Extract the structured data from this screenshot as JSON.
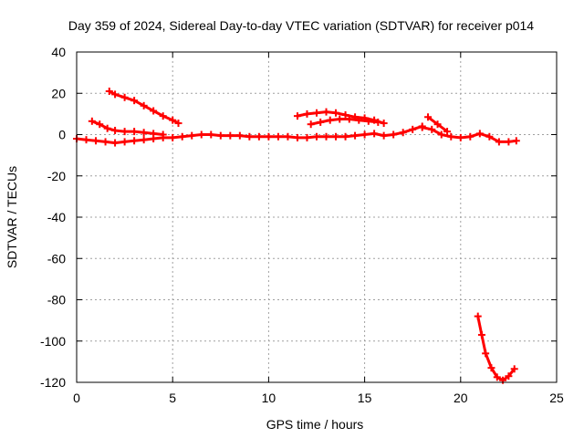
{
  "chart_data": {
    "type": "scatter",
    "title": "Day 359 of 2024, Sidereal Day-to-day VTEC variation (SDTVAR) for receiver p014",
    "xlabel": "GPS time / hours",
    "ylabel": "SDTVAR / TECUs",
    "xlim": [
      0,
      25
    ],
    "ylim": [
      -120,
      40
    ],
    "xticks": [
      0,
      5,
      10,
      15,
      20,
      25
    ],
    "yticks": [
      -120,
      -100,
      -80,
      -60,
      -40,
      -20,
      0,
      20,
      40
    ],
    "xtick_labels": [
      "0",
      "5",
      "10",
      "15",
      "20",
      "25"
    ],
    "ytick_labels": [
      "-120",
      "-100",
      "-80",
      "-60",
      "-40",
      "-20",
      "0",
      "20",
      "40"
    ],
    "grid": true,
    "marker_color": "#ff0000",
    "series": [
      {
        "name": "arc-1",
        "x": [
          0,
          0.5,
          1,
          1.5,
          2,
          2.5,
          3,
          3.5,
          4,
          4.5,
          5,
          5.5,
          6,
          6.5,
          7,
          7.5,
          8,
          8.5,
          9,
          9.5,
          10,
          10.5,
          11,
          11.5,
          12,
          12.5,
          13,
          13.5,
          14,
          14.5,
          15,
          15.5,
          16,
          16.5,
          17,
          17.5,
          18
        ],
        "y": [
          -2,
          -2.5,
          -3,
          -3.5,
          -4,
          -3.5,
          -3,
          -2.5,
          -2,
          -1.5,
          -1.5,
          -1,
          -0.5,
          0,
          0,
          -0.5,
          -0.5,
          -0.5,
          -1,
          -1,
          -1,
          -1,
          -1,
          -1.5,
          -1.5,
          -1,
          -1,
          -1,
          -1,
          -0.5,
          0,
          0.5,
          -0.5,
          0,
          1,
          2.5,
          4
        ]
      },
      {
        "name": "arc-2",
        "x": [
          0.8,
          1.2,
          1.6,
          2,
          2.5,
          3,
          3.5,
          4,
          4.5
        ],
        "y": [
          6.5,
          5,
          3,
          2,
          1.5,
          1.5,
          1,
          0.5,
          0
        ]
      },
      {
        "name": "arc-3",
        "x": [
          1.7,
          2,
          2.5,
          3,
          3.5,
          4,
          4.5,
          5,
          5.3
        ],
        "y": [
          21,
          19.5,
          18,
          16.5,
          14,
          11.5,
          9,
          7,
          5.5
        ]
      },
      {
        "name": "arc-4",
        "x": [
          11.5,
          12,
          12.5,
          13,
          13.5,
          14,
          14.5,
          15,
          15.5,
          16
        ],
        "y": [
          9,
          10,
          10.5,
          11,
          10.5,
          9.5,
          8.5,
          8,
          7,
          5.5
        ]
      },
      {
        "name": "arc-5",
        "x": [
          12.2,
          12.7,
          13.2,
          13.7,
          14.2,
          14.7,
          15.2,
          15.7
        ],
        "y": [
          5,
          6,
          7,
          7.5,
          7.5,
          7,
          6.5,
          6
        ]
      },
      {
        "name": "arc-6",
        "x": [
          18,
          18.5,
          19,
          19.5,
          20,
          20.5,
          21,
          21.5,
          22,
          22.5,
          22.9
        ],
        "y": [
          3.5,
          2.5,
          0,
          -1,
          -1.5,
          -1,
          0.5,
          -1,
          -3.5,
          -3.5,
          -3
        ]
      },
      {
        "name": "arc-7",
        "x": [
          18.3,
          18.8,
          19.3
        ],
        "y": [
          8.5,
          5,
          1.5
        ]
      },
      {
        "name": "arc-8",
        "x": [
          20.9,
          21.1,
          21.3,
          21.6,
          21.9,
          22.2,
          22.5,
          22.8
        ],
        "y": [
          -88,
          -97,
          -106,
          -113,
          -117.5,
          -119,
          -117,
          -113.5
        ]
      }
    ]
  }
}
